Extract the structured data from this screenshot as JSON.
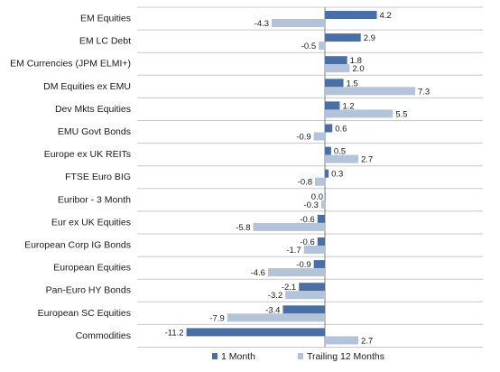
{
  "chart_data": {
    "type": "bar",
    "orientation": "horizontal",
    "categories": [
      "EM Equities",
      "EM LC Debt",
      "EM Currencies (JPM ELMI+)",
      "DM Equities ex EMU",
      "Dev Mkts Equities",
      "EMU Govt Bonds",
      "Europe ex UK REITs",
      "FTSE Euro BIG",
      "Euribor - 3 Month",
      "Eur ex UK Equities",
      "European Corp IG Bonds",
      "European Equities",
      "Pan-Euro HY Bonds",
      "European SC Equities",
      "Commodities"
    ],
    "series": [
      {
        "name": "1 Month",
        "color": "#4a6fa5",
        "values": [
          4.2,
          2.9,
          1.8,
          1.5,
          1.2,
          0.6,
          0.5,
          0.3,
          0.0,
          -0.6,
          -0.6,
          -0.9,
          -2.1,
          -3.4,
          -11.2
        ],
        "labels": [
          "4.2",
          "2.9",
          "1.8",
          "1.5",
          "1.2",
          "0.6",
          "0.5",
          "0.3",
          "0.0",
          "-0.6",
          "-0.6",
          "-0.9",
          "-2.1",
          "-3.4",
          "-11.2"
        ]
      },
      {
        "name": "Trailing 12 Months",
        "color": "#b3c3d9",
        "values": [
          -4.3,
          -0.5,
          2.0,
          7.3,
          5.5,
          -0.9,
          2.7,
          -0.8,
          -0.3,
          -5.8,
          -1.7,
          -4.6,
          -3.2,
          -7.9,
          2.7
        ],
        "labels": [
          "-4.3",
          "-0.5",
          "2.0",
          "7.3",
          "5.5",
          "-0.9",
          "2.7",
          "-0.8",
          "-0.3",
          "-5.8",
          "-1.7",
          "-4.6",
          "-3.2",
          "-7.9",
          "2.7"
        ]
      }
    ],
    "xlim": [
      -11.2,
      7.3
    ],
    "grid": "horizontal",
    "legend": "bottom-right",
    "title": "",
    "xlabel": "",
    "ylabel": ""
  }
}
